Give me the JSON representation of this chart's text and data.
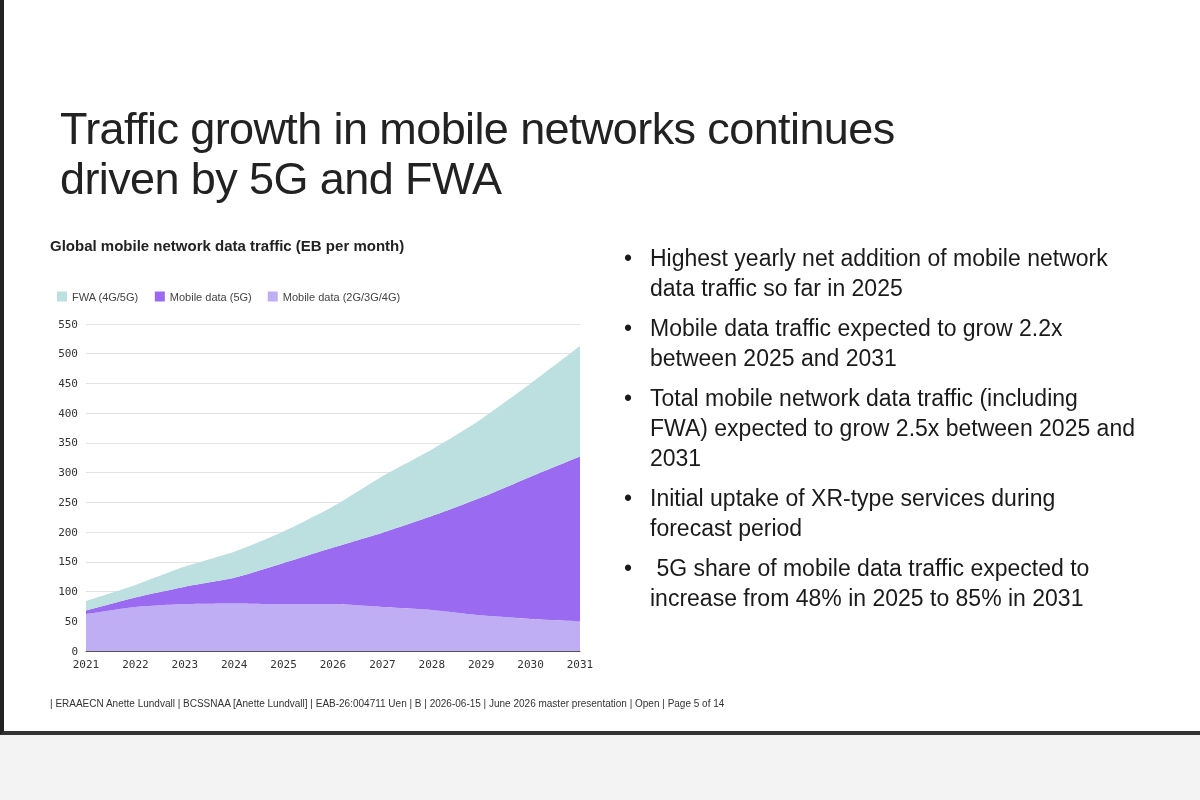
{
  "chart_data": {
    "type": "area",
    "title": "Traffic growth in mobile networks continues driven by 5G and FWA",
    "subtitle": "Global mobile network data traffic (EB per month)",
    "categories": [
      "2021",
      "2022",
      "2023",
      "2024",
      "2025",
      "2026",
      "2027",
      "2028",
      "2029",
      "2030",
      "2031"
    ],
    "series": [
      {
        "name": "Mobile data (2G/3G/4G)",
        "color": "#c0aef4",
        "values": [
          62,
          74,
          79,
          80,
          79,
          79,
          74,
          69,
          60,
          54,
          50
        ]
      },
      {
        "name": "Mobile data (5G)",
        "color": "#9a6af0",
        "values": [
          6,
          16,
          29,
          43,
          69,
          95,
          125,
          158,
          198,
          239,
          277
        ]
      },
      {
        "name": "FWA (4G/5G)",
        "color": "#bcdfe0",
        "values": [
          16,
          21,
          34,
          44,
          53,
          69,
          95,
          112,
          132,
          157,
          186
        ]
      }
    ],
    "stacked": true,
    "ylim": [
      0,
      550
    ],
    "yticks": [
      0,
      50,
      100,
      150,
      200,
      250,
      300,
      350,
      400,
      450,
      500,
      550
    ],
    "grid": "y",
    "legend": "top left",
    "marker": "none",
    "annotations": [
      "• Highest yearly net addition of mobile network data traffic so far in 2025",
      "• Mobile data traffic expected to grow 2.2x between 2025 and 2031",
      "• Total mobile network data traffic (including FWA) expected to grow 2.5x between 2025 and 2031",
      "• Initial uptake of XR-type services during forecast period",
      "•  5G share of mobile data traffic expected to increase from 48% in 2025 to 85% in 2031",
      "| ERAAECN Anette Lundvall | BCSSNAA [Anette Lundvall] | EAB-26:004711 Uen | B | 2026-06-15 | June 2026 master presentation | Open | Page 5 of 14"
    ]
  }
}
